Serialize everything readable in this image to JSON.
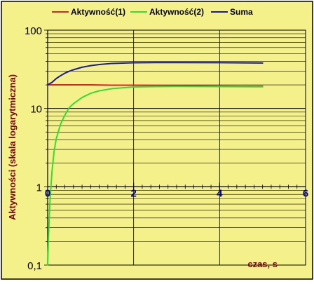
{
  "chart_data": {
    "type": "line",
    "title": "",
    "xlabel": "czas, s",
    "ylabel": "Aktywności (skala logarytmiczna)",
    "xlim": [
      0,
      6
    ],
    "ylim": [
      0.1,
      100
    ],
    "y_scale": "log",
    "x_ticks": [
      0,
      2,
      4,
      6
    ],
    "x_tick_labels": [
      "0",
      "2",
      "4",
      "6"
    ],
    "y_ticks": [
      0.1,
      1,
      10,
      100
    ],
    "y_tick_labels": [
      "0,1",
      "1",
      "10",
      "100"
    ],
    "grid": true,
    "legend_position": "top",
    "colors": {
      "plot_background": "#f5f18a",
      "frame_background": "#f5f18a",
      "grid": "#000000"
    },
    "series": [
      {
        "name": "Aktywność(1)",
        "color": "#d62728",
        "x": [
          0,
          0.5,
          1,
          1.5,
          2,
          2.5,
          3,
          3.5,
          4,
          4.5,
          5
        ],
        "values": [
          20,
          20,
          20,
          19.8,
          19.8,
          19.6,
          19.4,
          19.4,
          19.3,
          19.2,
          19.2
        ]
      },
      {
        "name": "Aktywność(2)",
        "color": "#33dd33",
        "x": [
          0,
          0.02,
          0.05,
          0.1,
          0.15,
          0.2,
          0.3,
          0.4,
          0.5,
          0.6,
          0.8,
          1.0,
          1.2,
          1.5,
          2.0,
          2.5,
          3.0,
          4.0,
          5.0
        ],
        "values": [
          0.1,
          0.23,
          0.6,
          1.55,
          2.85,
          4.1,
          6.3,
          8.2,
          10.2,
          11.5,
          13.8,
          15.6,
          16.8,
          17.9,
          18.8,
          19.0,
          19.1,
          19.0,
          18.9
        ]
      },
      {
        "name": "Suma",
        "color": "#1a1a9e",
        "x": [
          0,
          0.1,
          0.2,
          0.3,
          0.4,
          0.5,
          0.6,
          0.8,
          1.0,
          1.2,
          1.5,
          2.0,
          2.5,
          3.0,
          4.0,
          4.5,
          5.0
        ],
        "values": [
          20,
          21.5,
          24.1,
          26.2,
          28.2,
          29.8,
          31.2,
          33.6,
          35.2,
          36.4,
          37.6,
          38.3,
          38.5,
          38.5,
          38.4,
          38.2,
          38.0
        ]
      }
    ]
  }
}
